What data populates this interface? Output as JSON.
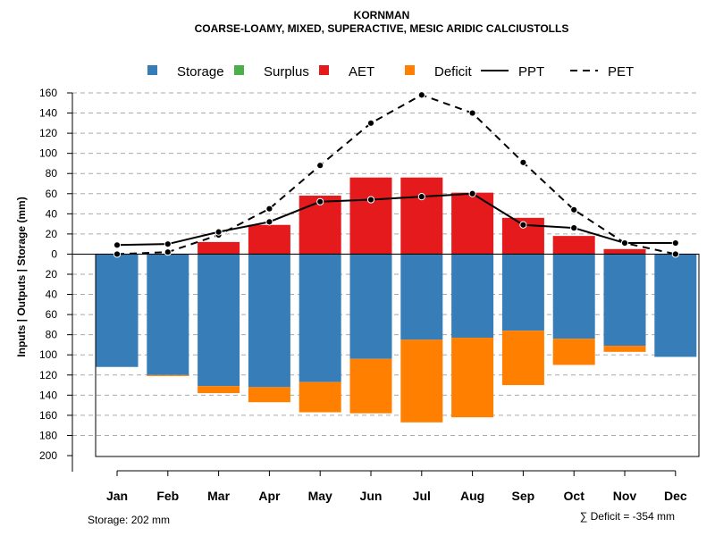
{
  "chart_data": {
    "type": "bar",
    "title": "KORNMAN",
    "subtitle": "COARSE-LOAMY, MIXED, SUPERACTIVE, MESIC ARIDIC CALCIUSTOLLS",
    "ylabel": "Inputs | Outputs | Storage    (mm)",
    "categories": [
      "Jan",
      "Feb",
      "Mar",
      "Apr",
      "May",
      "Jun",
      "Jul",
      "Aug",
      "Sep",
      "Oct",
      "Nov",
      "Dec"
    ],
    "ylim": [
      -200,
      160
    ],
    "y_ticks": [
      {
        "value": 160,
        "label": "160"
      },
      {
        "value": 140,
        "label": "140"
      },
      {
        "value": 120,
        "label": "120"
      },
      {
        "value": 100,
        "label": "100"
      },
      {
        "value": 80,
        "label": "80"
      },
      {
        "value": 60,
        "label": "60"
      },
      {
        "value": 40,
        "label": "40"
      },
      {
        "value": 20,
        "label": "20"
      },
      {
        "value": 0,
        "label": "0"
      },
      {
        "value": -20,
        "label": "20"
      },
      {
        "value": -40,
        "label": "40"
      },
      {
        "value": -60,
        "label": "60"
      },
      {
        "value": -80,
        "label": "80"
      },
      {
        "value": -100,
        "label": "100"
      },
      {
        "value": -120,
        "label": "120"
      },
      {
        "value": -140,
        "label": "140"
      },
      {
        "value": -160,
        "label": "160"
      },
      {
        "value": -180,
        "label": "180"
      },
      {
        "value": -200,
        "label": "200"
      }
    ],
    "legend": [
      {
        "name": "Storage",
        "color": "#377EB8",
        "kind": "box"
      },
      {
        "name": "Surplus",
        "color": "#4DAF4A",
        "kind": "box"
      },
      {
        "name": "AET",
        "color": "#E41A1C",
        "kind": "box"
      },
      {
        "name": "Deficit",
        "color": "#FF7F00",
        "kind": "box"
      },
      {
        "name": "PPT",
        "color": "#000000",
        "kind": "solid"
      },
      {
        "name": "PET",
        "color": "#000000",
        "kind": "dashed"
      }
    ],
    "series": [
      {
        "name": "AET",
        "color": "#E41A1C",
        "values": [
          0,
          0,
          12,
          29,
          58,
          76,
          76,
          61,
          36,
          18,
          5,
          0
        ]
      },
      {
        "name": "Storage",
        "color": "#377EB8",
        "values": [
          112,
          120,
          131,
          132,
          127,
          104,
          85,
          83,
          76,
          84,
          91,
          102
        ]
      },
      {
        "name": "Deficit",
        "color": "#FF7F00",
        "values": [
          0,
          1,
          7,
          15,
          30,
          54,
          82,
          79,
          54,
          26,
          6,
          0
        ]
      },
      {
        "name": "PPT",
        "color": "#000000",
        "values": [
          9,
          10,
          22,
          32,
          52,
          54,
          57,
          60,
          29,
          26,
          11,
          11
        ]
      },
      {
        "name": "PET",
        "color": "#000000",
        "values": [
          0,
          2,
          19,
          45,
          88,
          130,
          158,
          140,
          91,
          44,
          11,
          0
        ]
      }
    ],
    "storage_note": "Storage: 202 mm",
    "deficit_note": "∑ Deficit = -354 mm"
  }
}
